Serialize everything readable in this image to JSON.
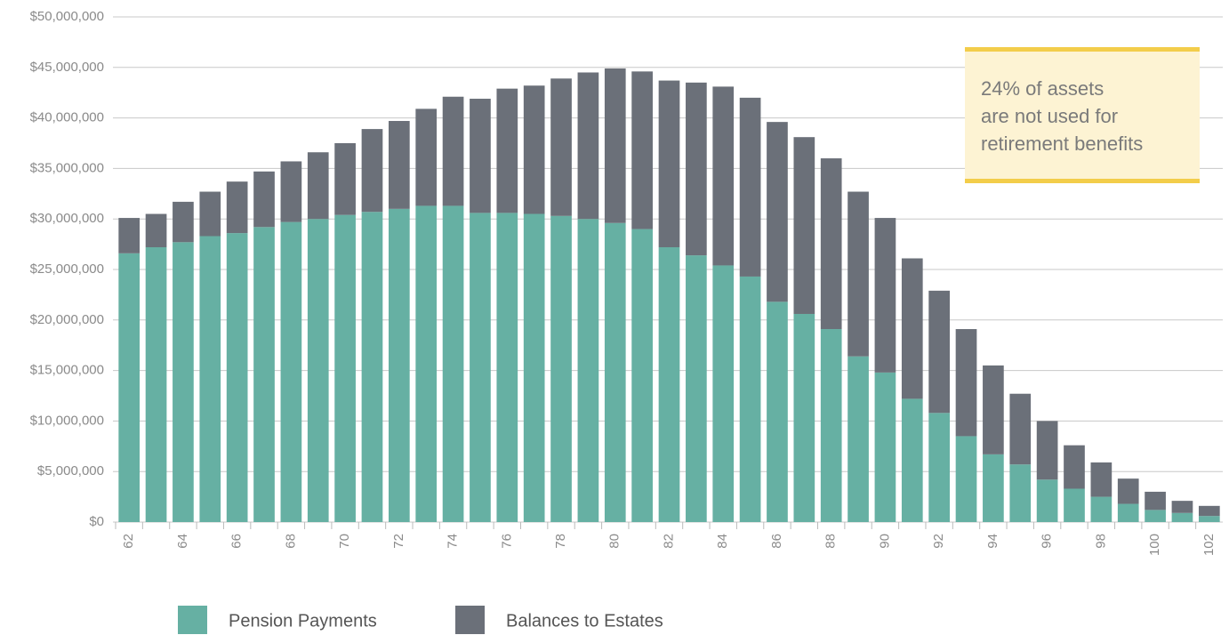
{
  "chart_data": {
    "type": "stacked_bar",
    "categories": [
      "62",
      null,
      "64",
      null,
      "66",
      null,
      "68",
      null,
      "70",
      null,
      "72",
      null,
      "74",
      null,
      "76",
      null,
      "78",
      null,
      "80",
      null,
      "82",
      null,
      "84",
      null,
      "86",
      null,
      "88",
      null,
      "90",
      null,
      "92",
      null,
      "94",
      null,
      "96",
      null,
      "98",
      null,
      "100",
      null,
      "102"
    ],
    "series": [
      {
        "name": "Pension Payments",
        "color": "#66b0a3",
        "values": [
          26600000,
          27200000,
          27700000,
          28300000,
          28600000,
          29200000,
          29700000,
          30000000,
          30400000,
          30700000,
          31000000,
          31300000,
          31300000,
          30600000,
          30600000,
          30500000,
          30300000,
          30000000,
          29600000,
          29000000,
          27200000,
          26400000,
          25400000,
          24300000,
          21800000,
          20600000,
          19100000,
          16400000,
          14800000,
          12200000,
          10800000,
          8500000,
          6700000,
          5700000,
          4200000,
          3300000,
          2500000,
          1800000,
          1200000,
          900000,
          600000
        ]
      },
      {
        "name": "Balances to Estates",
        "color": "#6b7079",
        "values": [
          3500000,
          3300000,
          4000000,
          4400000,
          5100000,
          5500000,
          6000000,
          6600000,
          7100000,
          8200000,
          8700000,
          9600000,
          10800000,
          11300000,
          12300000,
          12700000,
          13600000,
          14500000,
          15300000,
          15600000,
          16500000,
          17100000,
          17700000,
          17700000,
          17800000,
          17500000,
          16900000,
          16300000,
          15300000,
          13900000,
          12100000,
          10600000,
          8800000,
          7000000,
          5800000,
          4300000,
          3400000,
          2500000,
          1800000,
          1200000,
          1000000
        ]
      }
    ],
    "ylim": [
      0,
      50000000
    ],
    "yticks": [
      {
        "value": 0,
        "label": "$0"
      },
      {
        "value": 5000000,
        "label": "$5,000,000"
      },
      {
        "value": 10000000,
        "label": "$10,000,000"
      },
      {
        "value": 15000000,
        "label": "$15,000,000"
      },
      {
        "value": 20000000,
        "label": "$20,000,000"
      },
      {
        "value": 25000000,
        "label": "$25,000,000"
      },
      {
        "value": 30000000,
        "label": "$30,000,000"
      },
      {
        "value": 35000000,
        "label": "$35,000,000"
      },
      {
        "value": 40000000,
        "label": "$40,000,000"
      },
      {
        "value": 45000000,
        "label": "$45,000,000"
      },
      {
        "value": 50000000,
        "label": "$50,000,000"
      }
    ],
    "grid": true,
    "annotation": [
      "24% of assets",
      "are not used for",
      "retirement benefits"
    ]
  }
}
